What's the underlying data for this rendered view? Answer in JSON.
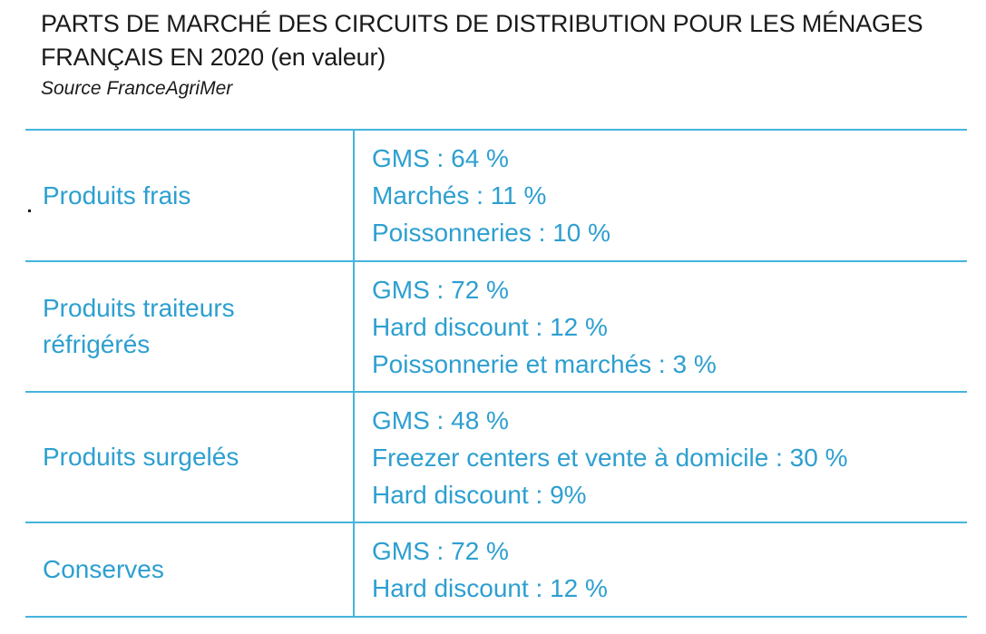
{
  "header": {
    "title_line1": "PARTS DE MARCHÉ DES CIRCUITS DE DISTRIBUTION POUR LES MÉNAGES",
    "title_line2": "FRANÇAIS EN 2020 (en valeur)",
    "source": "Source FranceAgriMer"
  },
  "table": {
    "rows": [
      {
        "label_line1": "Produits frais",
        "label_line2": "",
        "values": [
          "GMS : 64 %",
          "Marchés : 11 %",
          "Poissonneries : 10 %"
        ]
      },
      {
        "label_line1": "Produits traiteurs",
        "label_line2": "réfrigérés",
        "values": [
          "GMS : 72 %",
          "Hard discount : 12 %",
          "Poissonnerie et marchés : 3 %"
        ]
      },
      {
        "label_line1": "Produits surgelés",
        "label_line2": "",
        "values": [
          "GMS : 48 %",
          "Freezer centers et vente à domicile : 30 %",
          "Hard discount : 9%"
        ]
      },
      {
        "label_line1": "Conserves",
        "label_line2": "",
        "values": [
          "GMS : 72 %",
          "Hard discount : 12 %"
        ]
      }
    ]
  },
  "colors": {
    "accent": "#2d9fd0",
    "rule": "#45b4dc",
    "title": "#1a1a1a"
  }
}
